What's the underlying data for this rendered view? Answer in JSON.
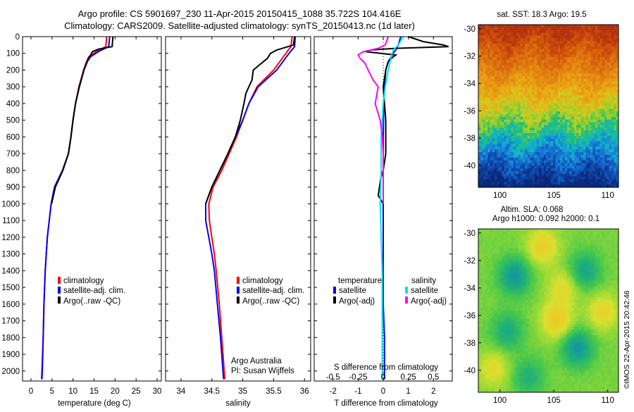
{
  "header": {
    "line1": "Argo profile: CS 5901697_230 11-Apr-2015 20150415_1088 35.722S 104.416E",
    "line2": "Climatology: CARS2009. Satellite-adjusted climatology: synTS_20150413.nc (1d later)"
  },
  "colors": {
    "climatology": "#ff0000",
    "satellite": "#0000ff",
    "argo": "#000000",
    "sal_satellite": "#00e5e5",
    "sal_argo": "#ff00ff"
  },
  "depth_axis": {
    "ticks": [
      "0",
      "100",
      "200",
      "300",
      "400",
      "500",
      "600",
      "700",
      "800",
      "900",
      "1000",
      "1100",
      "1200",
      "1300",
      "1400",
      "1500",
      "1600",
      "1700",
      "1800",
      "1900",
      "2000"
    ],
    "values": [
      0,
      100,
      200,
      300,
      400,
      500,
      600,
      700,
      800,
      900,
      1000,
      1100,
      1200,
      1300,
      1400,
      1500,
      1600,
      1700,
      1800,
      1900,
      2000
    ],
    "range": [
      0,
      2060
    ]
  },
  "chart_data": [
    {
      "type": "line",
      "id": "temperature",
      "xlabel": "temperature (deg C)",
      "xlim": [
        -2,
        31
      ],
      "xticks": [
        0,
        5,
        10,
        15,
        20,
        25,
        30
      ],
      "xtick_labels": [
        "0",
        "5",
        "10",
        "15",
        "20",
        "25",
        "30"
      ],
      "legend": [
        "climatology",
        "satellite-adj. clim.",
        "Argo(..raw -QC)"
      ],
      "series": [
        {
          "name": "climatology",
          "depth": [
            0,
            60,
            90,
            120,
            150,
            200,
            300,
            400,
            500,
            600,
            700,
            800,
            900,
            1000,
            1200,
            1400,
            1600,
            1800,
            2000,
            2050
          ],
          "values": [
            18.0,
            17.8,
            15.5,
            13.8,
            13.2,
            12.5,
            11.4,
            10.6,
            10.0,
            9.5,
            8.9,
            7.5,
            5.6,
            4.8,
            3.9,
            3.4,
            3.1,
            2.9,
            2.6,
            2.5
          ]
        },
        {
          "name": "satellite-adj. clim.",
          "depth": [
            0,
            60,
            90,
            120,
            150,
            200,
            300,
            400,
            500,
            600,
            700,
            800,
            900,
            1000,
            1200,
            1400,
            1600,
            1800,
            2000,
            2050
          ],
          "values": [
            18.7,
            18.5,
            16.0,
            14.2,
            13.4,
            12.6,
            11.5,
            10.6,
            10.0,
            9.5,
            8.9,
            7.5,
            5.6,
            4.8,
            3.9,
            3.4,
            3.1,
            2.9,
            2.7,
            2.6
          ]
        },
        {
          "name": "Argo(..raw -QC)",
          "depth": [
            0,
            60,
            75,
            90,
            110,
            130,
            150,
            200,
            300,
            400,
            500,
            600,
            700,
            800,
            900,
            1000
          ],
          "values": [
            19.5,
            19.3,
            16.0,
            14.6,
            14.2,
            13.6,
            13.4,
            12.6,
            11.5,
            10.6,
            10.0,
            9.5,
            8.9,
            7.6,
            5.8,
            4.9
          ]
        }
      ]
    },
    {
      "type": "line",
      "id": "salinity",
      "xlabel": "salinity",
      "xlim": [
        33.75,
        36.1
      ],
      "xticks": [
        34,
        34.5,
        35,
        35.5,
        36
      ],
      "xtick_labels": [
        "34",
        "34.5",
        "35",
        "35.5",
        "36"
      ],
      "legend": [
        "climatology",
        "satellite-adj. clim.",
        "Argo(..raw -QC)"
      ],
      "annotation": [
        "Argo Australia",
        "PI: Susan Wijffels"
      ],
      "series": [
        {
          "name": "climatology",
          "depth": [
            0,
            60,
            100,
            200,
            300,
            400,
            500,
            600,
            700,
            800,
            900,
            1000,
            1100,
            1200,
            1300,
            1400,
            1600,
            1800,
            2000,
            2050
          ],
          "values": [
            35.8,
            35.78,
            35.7,
            35.5,
            35.23,
            35.1,
            35.0,
            34.9,
            34.78,
            34.66,
            34.52,
            34.45,
            34.46,
            34.5,
            34.54,
            34.57,
            34.62,
            34.66,
            34.7,
            34.71
          ]
        },
        {
          "name": "satellite-adj. clim.",
          "depth": [
            0,
            60,
            100,
            200,
            300,
            400,
            500,
            600,
            700,
            800,
            900,
            1000,
            1100,
            1200,
            1300,
            1400,
            1600,
            1800,
            2000,
            2050
          ],
          "values": [
            35.85,
            35.84,
            35.75,
            35.55,
            35.25,
            35.1,
            35.0,
            34.88,
            34.76,
            34.63,
            34.5,
            34.4,
            34.4,
            34.45,
            34.5,
            34.54,
            34.59,
            34.64,
            34.68,
            34.69
          ]
        },
        {
          "name": "Argo(..raw -QC)",
          "depth": [
            0,
            50,
            80,
            100,
            130,
            160,
            200,
            260,
            300,
            340,
            400,
            500,
            600,
            700,
            800,
            900,
            1000
          ],
          "values": [
            35.84,
            35.82,
            35.55,
            35.45,
            35.4,
            35.3,
            35.17,
            35.15,
            35.1,
            35.05,
            35.02,
            34.96,
            34.88,
            34.76,
            34.63,
            34.5,
            34.4
          ]
        }
      ]
    },
    {
      "type": "line",
      "id": "differences",
      "xlabel": "T difference from climatology",
      "xlim": [
        -2.75,
        2.75
      ],
      "xticks": [
        -2,
        -1,
        0,
        1,
        2
      ],
      "xtick_labels": [
        "-2",
        "-1",
        "0",
        "1",
        "2"
      ],
      "top_axis_label": "S difference from climatology",
      "top_ticks": [
        -0.5,
        -0.25,
        0,
        0.25,
        0.5
      ],
      "top_tick_labels": [
        "-0.5",
        "-0.25",
        "0",
        "0.25",
        "0.5"
      ],
      "legend_titles": [
        "temperature",
        "salinity"
      ],
      "legend": [
        "satellite",
        "Argo(-adj)",
        "satellite",
        "Argo(-adj)"
      ],
      "series": [
        {
          "name": "T satellite",
          "quantity": "T",
          "depth": [
            0,
            50,
            80,
            100,
            150,
            200,
            300,
            400,
            600,
            800,
            1000,
            1200,
            1400,
            1600,
            1800,
            2000,
            2050
          ],
          "values": [
            0.7,
            0.6,
            0.5,
            0.4,
            0.2,
            0.1,
            0.05,
            0.02,
            0.0,
            0.0,
            0.0,
            0.0,
            0.0,
            0.0,
            0.05,
            0.05,
            0.05
          ]
        },
        {
          "name": "T Argo(-adj)",
          "quantity": "T",
          "depth": [
            0,
            30,
            50,
            60,
            70,
            80,
            90,
            110,
            120,
            150,
            200,
            300,
            400,
            500,
            600,
            700,
            750,
            800,
            850,
            900,
            950,
            1000
          ],
          "values": [
            1.0,
            1.6,
            2.4,
            2.6,
            0.5,
            -0.5,
            -0.7,
            0.5,
            0.4,
            0.2,
            0.1,
            0.0,
            0.05,
            0.1,
            0.1,
            0.1,
            0.05,
            0.0,
            -0.1,
            -0.15,
            -0.2,
            0.0
          ]
        },
        {
          "name": "S satellite",
          "quantity": "S",
          "depth": [
            0,
            50,
            80,
            120,
            200,
            300,
            400,
            600,
            800,
            1000,
            1200,
            1400,
            1600,
            1800,
            2000,
            2050
          ],
          "values": [
            0.2,
            0.15,
            0.1,
            0.08,
            0.05,
            0.02,
            0.0,
            -0.02,
            -0.02,
            -0.03,
            -0.02,
            -0.01,
            -0.01,
            -0.01,
            -0.01,
            -0.01
          ]
        },
        {
          "name": "S Argo(-adj)",
          "quantity": "S",
          "depth": [
            0,
            50,
            70,
            90,
            110,
            130,
            160,
            200,
            260,
            300,
            400,
            500,
            600,
            700,
            800,
            900,
            950,
            1000
          ],
          "values": [
            0.05,
            0.02,
            -0.05,
            -0.2,
            -0.25,
            -0.23,
            -0.18,
            -0.15,
            -0.1,
            -0.05,
            -0.08,
            -0.03,
            -0.01,
            0.0,
            0.0,
            0.0,
            0.0,
            0.0
          ]
        }
      ]
    },
    {
      "type": "heatmap",
      "id": "sst_map",
      "title": "sat. SST: 18.3 Argo: 19.5",
      "xlim": [
        98,
        111
      ],
      "ylim": [
        -41.6,
        -29.7
      ],
      "xticks": [
        100,
        105,
        110
      ],
      "xtick_labels": [
        "100",
        "105",
        "110"
      ],
      "yticks": [
        -30,
        -32,
        -34,
        -36,
        -38,
        -40
      ],
      "ytick_labels": [
        "-30",
        "-32",
        "-34",
        "-36",
        "-38",
        "-40"
      ]
    },
    {
      "type": "heatmap",
      "id": "sla_map",
      "title_line1": "Altim. SLA: 0.068",
      "title_line2": "Argo h1000: 0.092 h2000: 0.1",
      "xlim": [
        98,
        111
      ],
      "ylim": [
        -41.6,
        -29.7
      ],
      "xticks": [
        100,
        105,
        110
      ],
      "xtick_labels": [
        "100",
        "105",
        "110"
      ],
      "yticks": [
        -30,
        -32,
        -34,
        -36,
        -38,
        -40
      ],
      "ytick_labels": [
        "-30",
        "-32",
        "-34",
        "-36",
        "-38",
        "-40"
      ]
    }
  ],
  "watermark": "©IMOS 22-Apr-2015 20:42:46"
}
